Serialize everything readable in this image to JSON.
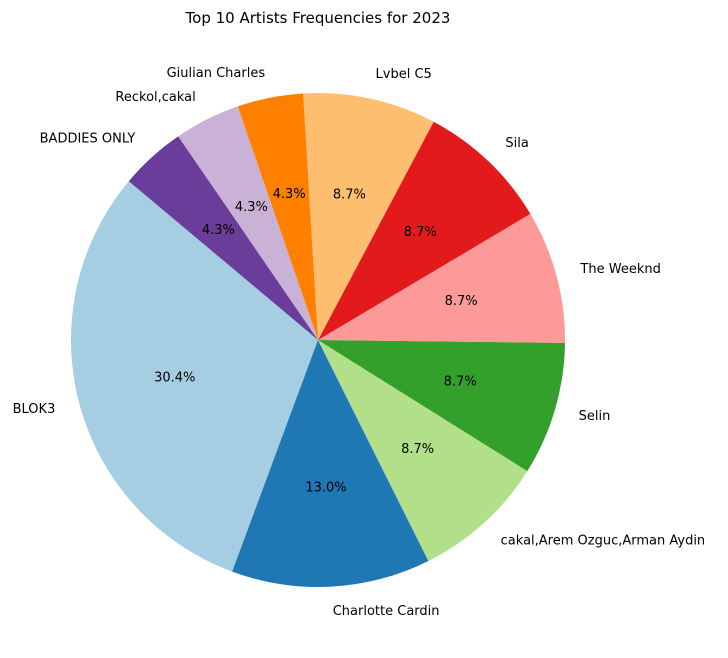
{
  "chart_data": {
    "type": "pie",
    "title": "Top 10 Artists Frequencies for 2023",
    "start_angle_deg": 140,
    "direction": "counterclockwise",
    "slices": [
      {
        "label": "BLOK3",
        "value": 30.4,
        "pct_label": "30.4%",
        "color": "#a6cee3"
      },
      {
        "label": "Charlotte Cardin",
        "value": 13.0,
        "pct_label": "13.0%",
        "color": "#1f78b4"
      },
      {
        "label": "cakal,Arem Ozguc,Arman Aydin",
        "value": 8.7,
        "pct_label": "8.7%",
        "color": "#b2df8a"
      },
      {
        "label": "Selin",
        "value": 8.7,
        "pct_label": "8.7%",
        "color": "#33a02c"
      },
      {
        "label": "The Weeknd",
        "value": 8.7,
        "pct_label": "8.7%",
        "color": "#fb9a99"
      },
      {
        "label": "Sila",
        "value": 8.7,
        "pct_label": "8.7%",
        "color": "#e31a1c"
      },
      {
        "label": "Lvbel C5",
        "value": 8.7,
        "pct_label": "8.7%",
        "color": "#fdbf6f"
      },
      {
        "label": "Giulian Charles",
        "value": 4.3,
        "pct_label": "4.3%",
        "color": "#ff7f00"
      },
      {
        "label": "Reckol,cakal",
        "value": 4.3,
        "pct_label": "4.3%",
        "color": "#cab2d6"
      },
      {
        "label": "BADDIES ONLY",
        "value": 4.3,
        "pct_label": "4.3%",
        "color": "#6a3d9a"
      }
    ]
  }
}
